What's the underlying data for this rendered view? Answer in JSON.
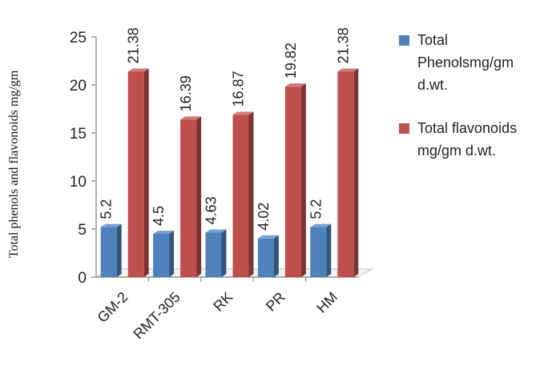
{
  "chart_data": {
    "type": "bar",
    "title": "",
    "xlabel": "",
    "ylabel": "Total phenols and flavonoids mg/gm",
    "ylim": [
      0,
      25
    ],
    "yticks": [
      0,
      5,
      10,
      15,
      20,
      25
    ],
    "categories": [
      "GM-2",
      "RMT-305",
      "RK",
      "PR",
      "HM"
    ],
    "series": [
      {
        "name": "Total Phenolsmg/gm d.wt.",
        "legend_lines": [
          "Total",
          "Phenolsmg/gm",
          "d.wt."
        ],
        "color": "#4F81BD",
        "values": [
          5.2,
          4.5,
          4.63,
          4.02,
          5.2
        ],
        "labels": [
          "5.2",
          "4.5",
          "4.63",
          "4.02",
          "5.2"
        ]
      },
      {
        "name": "Total flavonoids mg/gm d.wt.",
        "legend_lines": [
          "Total flavonoids",
          "mg/gm d.wt."
        ],
        "color": "#C0504D",
        "values": [
          21.38,
          16.39,
          16.87,
          19.82,
          21.38
        ],
        "labels": [
          "21.38",
          "16.39",
          "16.87",
          "19.82",
          "21.38"
        ]
      }
    ],
    "legend_position": "right",
    "grid": false
  }
}
